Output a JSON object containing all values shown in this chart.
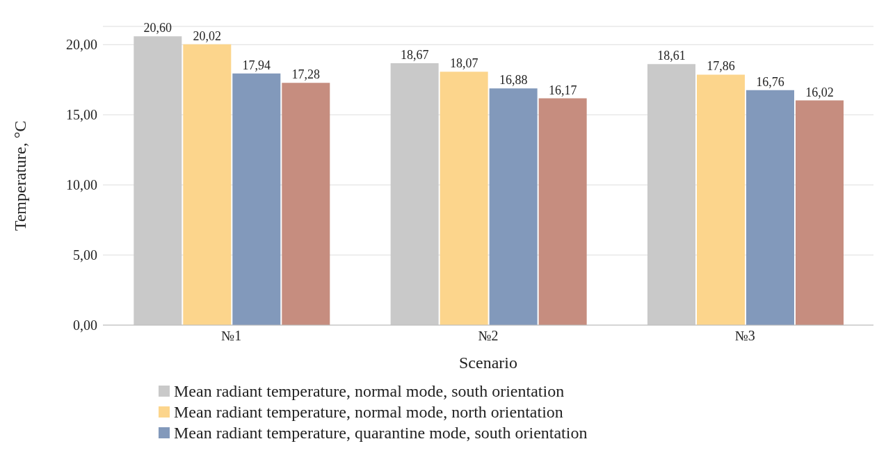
{
  "chart_data": {
    "type": "bar",
    "xlabel": "Scenario",
    "ylabel": "Temperature, °C",
    "categories": [
      "№1",
      "№2",
      "№3"
    ],
    "series": [
      {
        "name": "Mean radiant temperature, normal mode, south orientation",
        "color": "#c9c9c9",
        "values": [
          20.6,
          18.67,
          18.61
        ],
        "value_labels": [
          "20,60",
          "18,67",
          "18,61"
        ]
      },
      {
        "name": "Mean radiant temperature, normal mode, north orientation",
        "color": "#fcd58c",
        "values": [
          20.02,
          18.07,
          17.86
        ],
        "value_labels": [
          "20,02",
          "18,07",
          "17,86"
        ]
      },
      {
        "name": "Mean radiant temperature, quarantine mode, south orientation",
        "color": "#8299bb",
        "values": [
          17.94,
          16.88,
          16.76
        ],
        "value_labels": [
          "17,94",
          "16,88",
          "16,76"
        ]
      },
      {
        "color": "#c68d7f",
        "values": [
          17.28,
          16.17,
          16.02
        ],
        "value_labels": [
          "17,28",
          "16,17",
          "16,02"
        ]
      }
    ],
    "ylim": [
      0,
      21.3
    ],
    "yticks": [
      {
        "value": 0,
        "label": "0,00"
      },
      {
        "value": 5,
        "label": "5,00"
      },
      {
        "value": 10,
        "label": "10,00"
      },
      {
        "value": 15,
        "label": "15,00"
      },
      {
        "value": 20,
        "label": "20,00"
      }
    ],
    "grid": "y",
    "legend": "bottom"
  }
}
